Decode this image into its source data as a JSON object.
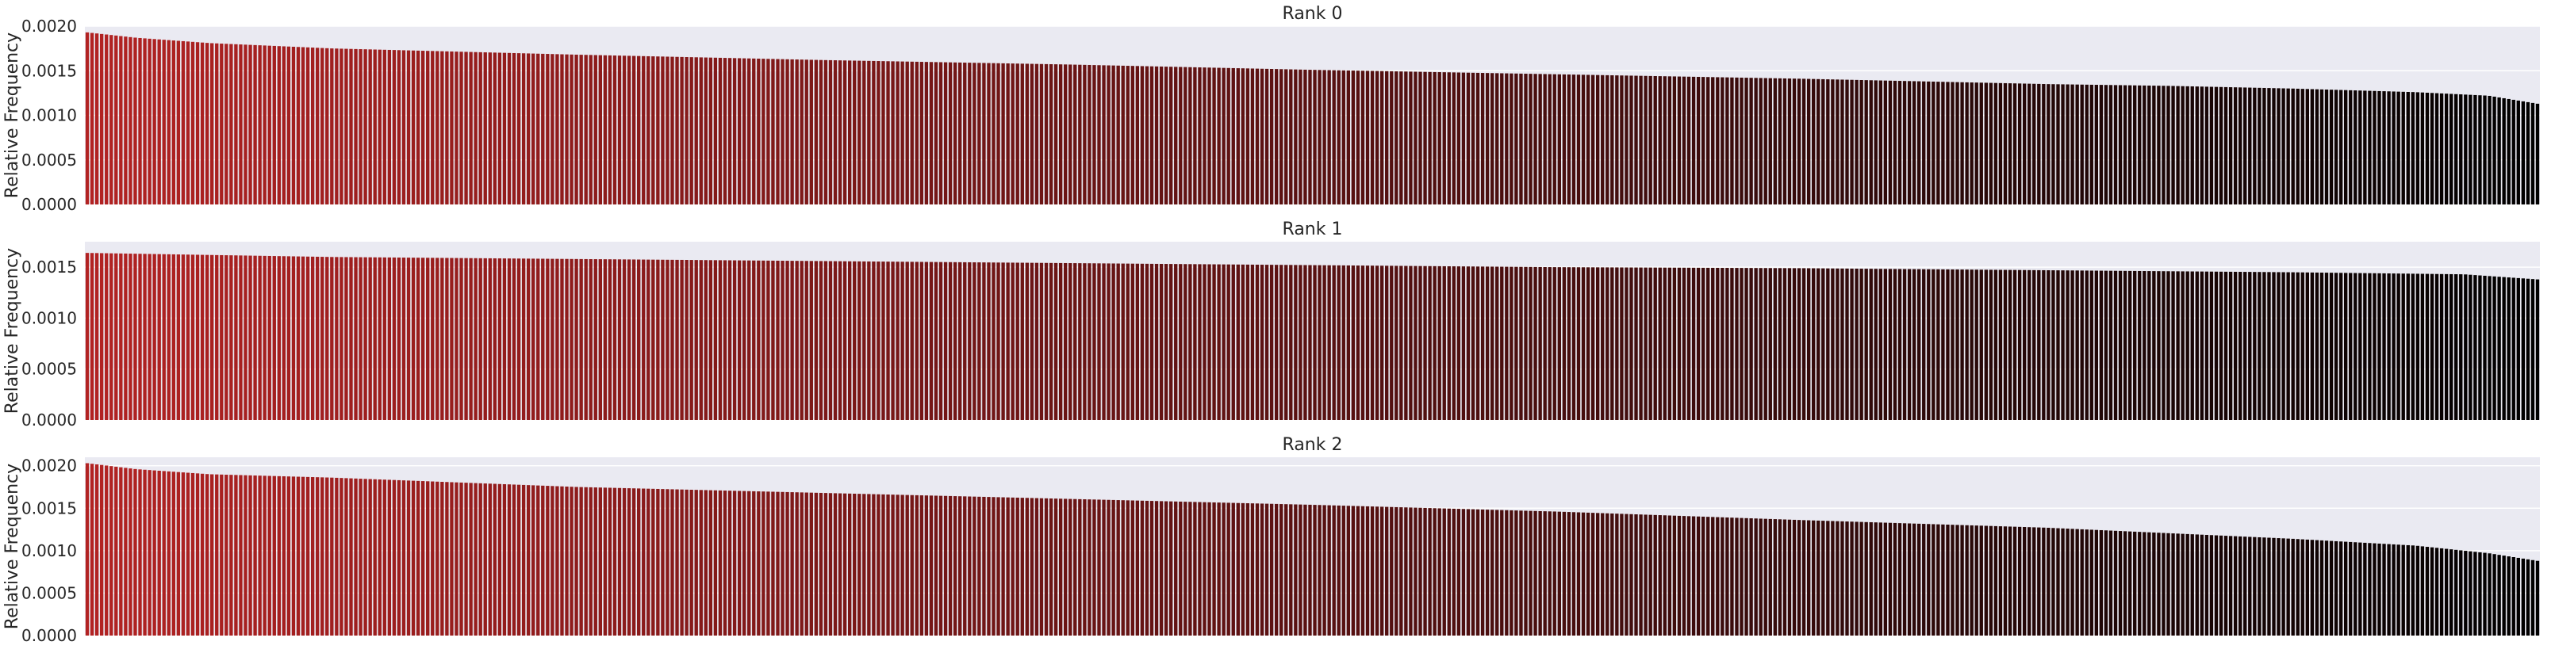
{
  "chart_data": [
    {
      "type": "bar",
      "title": "Rank 0",
      "ylabel": "Relative Frequency",
      "xlabel": "",
      "ylim": [
        0,
        0.002
      ],
      "yticks": [
        "0.0000",
        "0.0005",
        "0.0010",
        "0.0015",
        "0.0020"
      ],
      "ytick_values": [
        0,
        0.0005,
        0.001,
        0.0015,
        0.002
      ],
      "n_bars": 512,
      "sorted": "descending",
      "values_profile": {
        "points": [
          [
            0,
            0.00193
          ],
          [
            0.02,
            0.00187
          ],
          [
            0.05,
            0.00181
          ],
          [
            0.1,
            0.00175
          ],
          [
            0.2,
            0.00168
          ],
          [
            0.3,
            0.00162
          ],
          [
            0.4,
            0.00157
          ],
          [
            0.5,
            0.00151
          ],
          [
            0.6,
            0.00146
          ],
          [
            0.7,
            0.00141
          ],
          [
            0.8,
            0.00135
          ],
          [
            0.85,
            0.00133
          ],
          [
            0.9,
            0.0013
          ],
          [
            0.95,
            0.00126
          ],
          [
            0.98,
            0.00122
          ],
          [
            1.0,
            0.00113
          ]
        ]
      },
      "color_start": "#b22222",
      "color_end": "#000000",
      "background": "#eaeaf2",
      "grid_color": "#ffffff",
      "grid": true
    },
    {
      "type": "bar",
      "title": "Rank 1",
      "ylabel": "Relative Frequency",
      "xlabel": "",
      "ylim": [
        0,
        0.00175
      ],
      "yticks": [
        "0.0000",
        "0.0005",
        "0.0010",
        "0.0015"
      ],
      "ytick_values": [
        0,
        0.0005,
        0.001,
        0.0015
      ],
      "n_bars": 512,
      "sorted": "descending",
      "values_profile": {
        "points": [
          [
            0,
            0.00164
          ],
          [
            0.05,
            0.00162
          ],
          [
            0.1,
            0.0016
          ],
          [
            0.2,
            0.00158
          ],
          [
            0.3,
            0.00156
          ],
          [
            0.4,
            0.00154
          ],
          [
            0.5,
            0.00152
          ],
          [
            0.6,
            0.0015
          ],
          [
            0.7,
            0.00149
          ],
          [
            0.8,
            0.00147
          ],
          [
            0.9,
            0.00145
          ],
          [
            0.97,
            0.00143
          ],
          [
            1.0,
            0.00138
          ]
        ]
      },
      "color_start": "#b22222",
      "color_end": "#000000",
      "background": "#eaeaf2",
      "grid_color": "#ffffff",
      "grid": true
    },
    {
      "type": "bar",
      "title": "Rank 2",
      "ylabel": "Relative Frequency",
      "xlabel": "",
      "ylim": [
        0,
        0.0021
      ],
      "yticks": [
        "0.0000",
        "0.0005",
        "0.0010",
        "0.0015",
        "0.0020"
      ],
      "ytick_values": [
        0,
        0.0005,
        0.001,
        0.0015,
        0.002
      ],
      "n_bars": 512,
      "sorted": "descending",
      "values_profile": {
        "points": [
          [
            0,
            0.00203
          ],
          [
            0.02,
            0.00196
          ],
          [
            0.05,
            0.0019
          ],
          [
            0.1,
            0.00186
          ],
          [
            0.2,
            0.00175
          ],
          [
            0.3,
            0.00168
          ],
          [
            0.4,
            0.00161
          ],
          [
            0.5,
            0.00154
          ],
          [
            0.6,
            0.00146
          ],
          [
            0.7,
            0.00136
          ],
          [
            0.8,
            0.00127
          ],
          [
            0.9,
            0.00114
          ],
          [
            0.95,
            0.00106
          ],
          [
            0.98,
            0.00097
          ],
          [
            1.0,
            0.00088
          ]
        ]
      },
      "color_start": "#b22222",
      "color_end": "#000000",
      "background": "#eaeaf2",
      "grid_color": "#ffffff",
      "grid": true
    }
  ]
}
